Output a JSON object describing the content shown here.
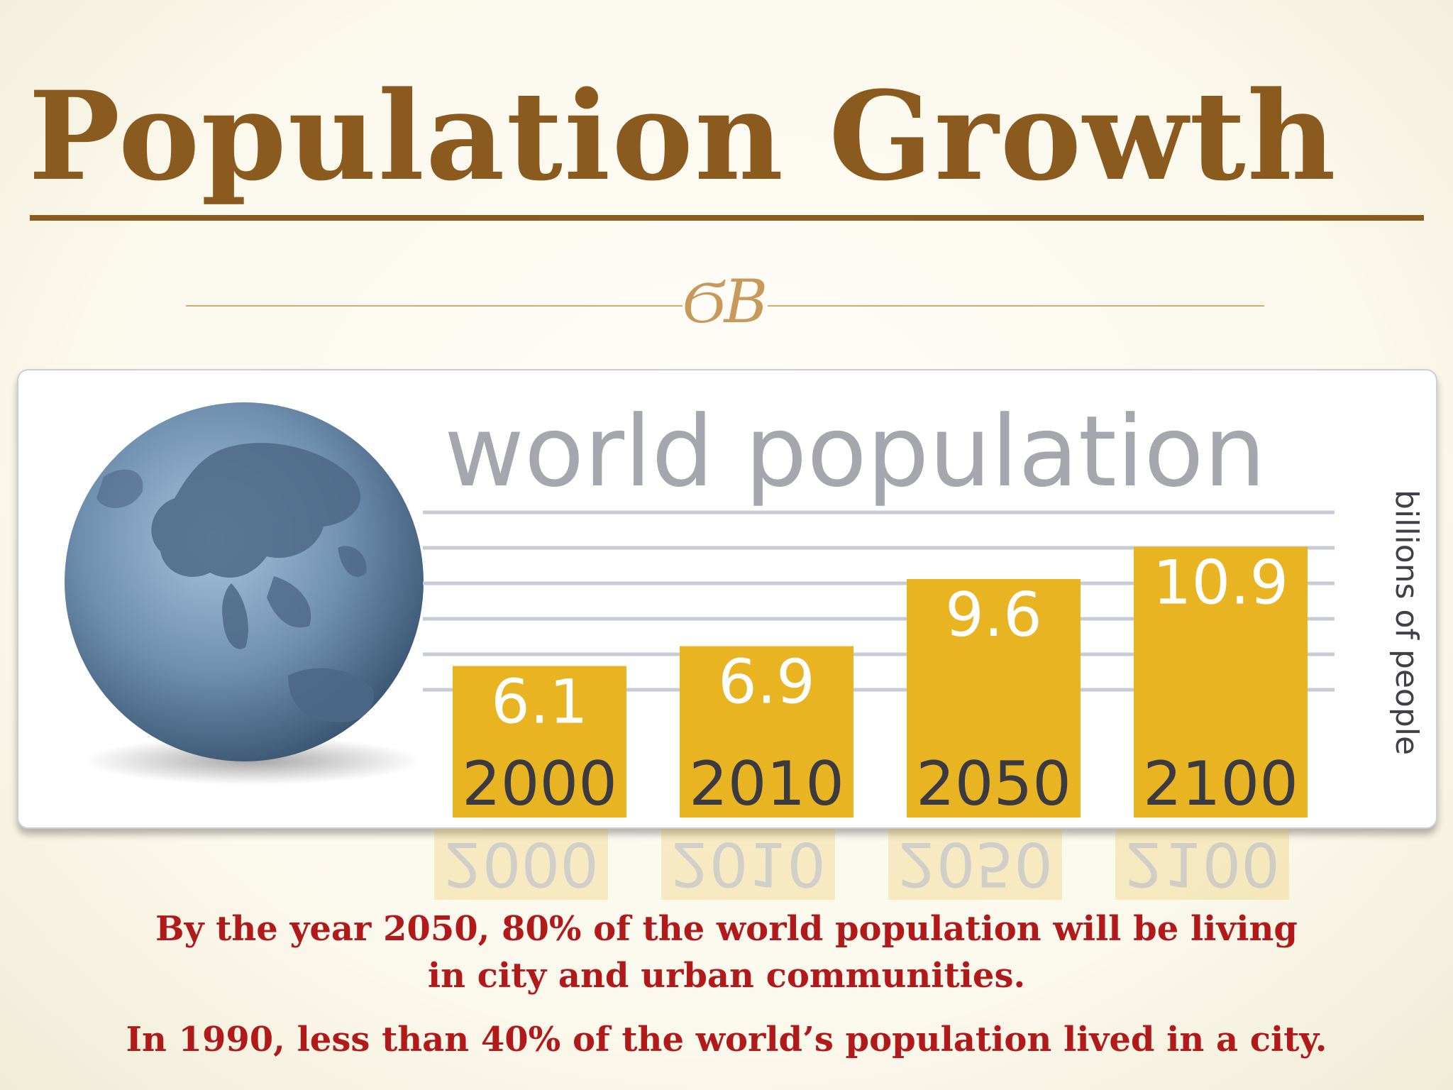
{
  "slide": {
    "title": "Population Growth",
    "ornament": "ϬB",
    "caption": [
      "By the year 2050,  80% of the world population will be living",
      "in city and urban  communities.",
      "In 1990, less than 40% of the world’s population lived in a city."
    ]
  },
  "colors": {
    "title": "#8b5a1f",
    "ornament": "#c79a5c",
    "bar": "#e8b422",
    "caption": "#b01a1a",
    "globe": "#5d7d9c"
  },
  "chart_data": {
    "type": "bar",
    "title": "world population",
    "ylabel": "billions of people",
    "categories": [
      "2000",
      "2010",
      "2050",
      "2100"
    ],
    "values": [
      6.1,
      6.9,
      9.6,
      10.9
    ],
    "data_labels": [
      "6.1",
      "6.9",
      "9.6",
      "10.9"
    ],
    "grid": true,
    "icon": "globe-icon"
  }
}
